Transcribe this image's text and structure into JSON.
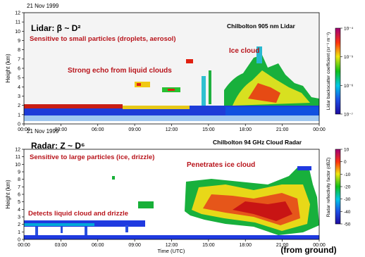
{
  "colors": {
    "annotation": "#b8141b",
    "frame": "#000000",
    "background": "#ffffff",
    "panel_background": "#f4f4f4"
  },
  "footer_label": "(from ground)",
  "chart_data": [
    {
      "type": "heatmap",
      "date": "21 Nov 1999",
      "title": "Chilbolton 905 nm Lidar",
      "heading": "Lidar: β ~ D²",
      "ylabel": "Height (km)",
      "xlabel": "",
      "ylim": [
        0,
        12
      ],
      "xlim": [
        "00:00",
        "24:00"
      ],
      "x_ticks": [
        "00:00",
        "03:00",
        "06:00",
        "09:00",
        "12:00",
        "15:00",
        "18:00",
        "21:00",
        "00:00"
      ],
      "y_ticks": [
        "0",
        "1",
        "2",
        "3",
        "4",
        "5",
        "6",
        "7",
        "8",
        "9",
        "10",
        "11",
        "12"
      ],
      "colorbar": {
        "label": "Lidar backscatter coefficient (sr⁻¹ m⁻¹)",
        "scale": "log",
        "range": [
          1e-07,
          0.0001
        ],
        "ticks": [
          "10⁻⁴",
          "10⁻⁵",
          "10⁻⁶",
          "10⁻⁷"
        ]
      },
      "annotations": [
        "Sensitive to small particles (droplets, aerosol)",
        "Ice cloud",
        "Strong echo from liquid clouds"
      ],
      "features": [
        {
          "name": "boundary layer aerosol / liquid cloud",
          "hours": [
            0,
            24
          ],
          "height_km": [
            0.3,
            2.0
          ]
        },
        {
          "name": "liquid cloud echoes",
          "hours": [
            9,
            14
          ],
          "height_km": [
            4.0,
            7.0
          ]
        },
        {
          "name": "ice cloud",
          "hours": [
            15.5,
            23.5
          ],
          "height_km": [
            2.0,
            9.5
          ]
        }
      ]
    },
    {
      "type": "heatmap",
      "date": "21 Nov 1999",
      "title": "Chilbolton 94 GHz Cloud Radar",
      "heading": "Radar: Z ~ D⁶",
      "ylabel": "Height (km)",
      "xlabel": "Time (UTC)",
      "ylim": [
        0,
        12
      ],
      "xlim": [
        "00:00",
        "24:00"
      ],
      "x_ticks": [
        "00:00",
        "03:00",
        "06:00",
        "09:00",
        "12:00",
        "15:00",
        "18:00",
        "21:00",
        "00:00"
      ],
      "y_ticks": [
        "0",
        "1",
        "2",
        "3",
        "4",
        "5",
        "6",
        "7",
        "8",
        "9",
        "10",
        "11",
        "12"
      ],
      "colorbar": {
        "label": "Radar reflectivity factor (dBZ)",
        "scale": "linear",
        "range": [
          -50,
          10
        ],
        "ticks": [
          "10",
          "0",
          "-10",
          "-20",
          "-30",
          "-40",
          "-50"
        ]
      },
      "annotations": [
        "Sensitive to large particles (ice, drizzle)",
        "Penetrates ice cloud",
        "Detects liquid cloud and drizzle"
      ],
      "features": [
        {
          "name": "liquid cloud and drizzle",
          "hours": [
            0,
            10
          ],
          "height_km": [
            0.5,
            2.0
          ]
        },
        {
          "name": "ice cloud",
          "hours": [
            14.5,
            23.5
          ],
          "height_km": [
            0.5,
            10.5
          ]
        }
      ]
    }
  ]
}
